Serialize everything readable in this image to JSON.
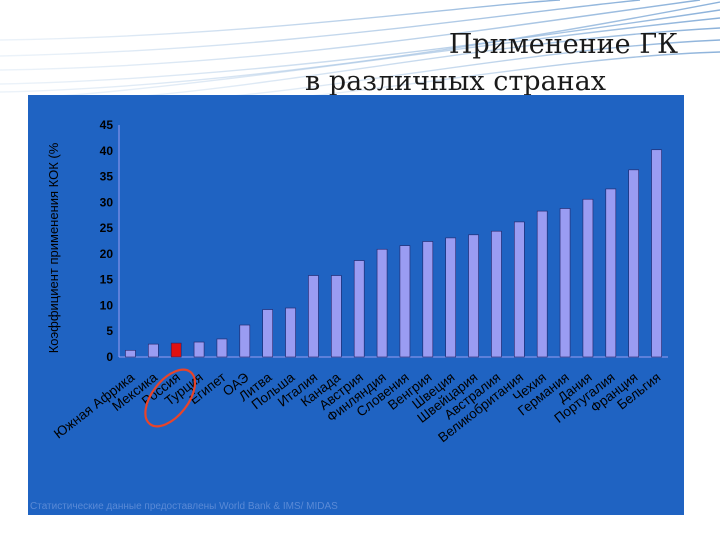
{
  "slide": {
    "title_line1": "Применение ГК",
    "title_line2": "в различных странах",
    "source_note": "Статистические данные предоставлены World Bank & IMS/ MIDAS",
    "colors": {
      "panel": "#1f63c2",
      "bar": "#9a9cf2",
      "highlight_bar": "#e01010",
      "highlight_circle": "#e8442a",
      "text": "#000000"
    }
  },
  "chart_data": {
    "type": "bar",
    "ylabel": "Коэффициент применения КОК (%",
    "ylim": [
      0,
      45
    ],
    "yticks": [
      0,
      5,
      10,
      15,
      20,
      25,
      30,
      35,
      40,
      45
    ],
    "grid": false,
    "legend": "none",
    "highlight_category": "Россия",
    "categories": [
      "Южная Африка",
      "Мексика",
      "Россия",
      "Турция",
      "Египет",
      "ОАЭ",
      "Литва",
      "Польша",
      "Италия",
      "Канада",
      "Австрия",
      "Финляндия",
      "Словения",
      "Венгрия",
      "Швеция",
      "Швейцария",
      "Австралия",
      "Великобритания",
      "Чехия",
      "Германия",
      "Дания",
      "Португалия",
      "Франция",
      "Бельгия"
    ],
    "values": [
      1.3,
      2.5,
      2.7,
      2.9,
      3.5,
      6.2,
      9.2,
      9.5,
      15.8,
      15.8,
      18.7,
      20.9,
      21.6,
      22.4,
      23.1,
      23.7,
      24.4,
      26.2,
      28.3,
      28.8,
      30.6,
      32.6,
      36.3,
      40.2
    ]
  }
}
